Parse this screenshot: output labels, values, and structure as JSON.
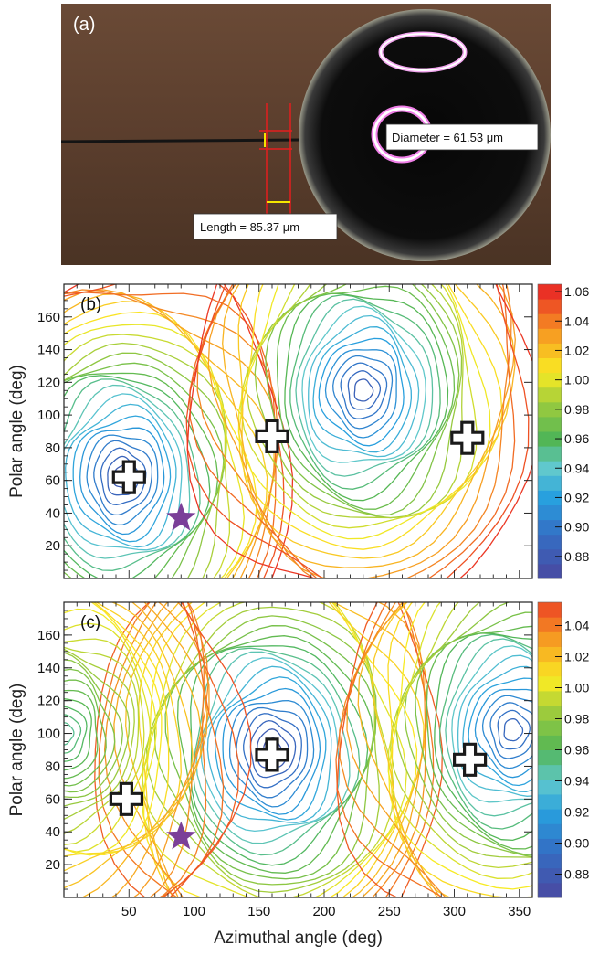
{
  "photo": {
    "panel_label": "(a)",
    "diameter_label": "Diameter = 61.53 μm",
    "length_label": "Length = 85.37 μm"
  },
  "chart_data": [
    {
      "type": "heatmap",
      "panel_label": "(b)",
      "title": "",
      "xlabel": "",
      "ylabel": "Polar angle (deg)",
      "xlim": [
        0,
        360
      ],
      "ylim": [
        0,
        180
      ],
      "xticks": [],
      "yticks": [
        20,
        40,
        60,
        80,
        100,
        120,
        140,
        160
      ],
      "colorbar": {
        "min": 0.865,
        "max": 1.065,
        "ticks": [
          0.88,
          0.9,
          0.92,
          0.94,
          0.96,
          0.98,
          1.0,
          1.02,
          1.04,
          1.06
        ],
        "tick_labels": [
          "0.88",
          "0.90",
          "0.92",
          "0.94",
          "0.96",
          "0.98",
          "1.00",
          "1.02",
          "1.04",
          "1.06"
        ]
      },
      "minima": [
        {
          "azimuth": 45,
          "polar": 62,
          "value": 0.88
        },
        {
          "azimuth": 230,
          "polar": 115,
          "value": 0.885
        }
      ],
      "cross_markers": [
        {
          "azimuth": 50,
          "polar": 62
        },
        {
          "azimuth": 160,
          "polar": 87
        },
        {
          "azimuth": 310,
          "polar": 86
        }
      ],
      "star_markers": [
        {
          "azimuth": 90,
          "polar": 37
        }
      ],
      "colors": {
        "low": "#3b3bb0",
        "mid": "#58b84a",
        "high": "#e81e26",
        "star": "#7b3f98"
      }
    },
    {
      "type": "heatmap",
      "panel_label": "(c)",
      "title": "",
      "xlabel": "Azimuthal angle (deg)",
      "ylabel": "Polar angle (deg)",
      "xlim": [
        0,
        360
      ],
      "ylim": [
        0,
        180
      ],
      "xticks": [
        50,
        100,
        150,
        200,
        250,
        300,
        350
      ],
      "yticks": [
        20,
        40,
        60,
        80,
        100,
        120,
        140,
        160
      ],
      "colorbar": {
        "min": 0.865,
        "max": 1.055,
        "ticks": [
          0.88,
          0.9,
          0.92,
          0.94,
          0.96,
          0.98,
          1.0,
          1.02,
          1.04
        ],
        "tick_labels": [
          "0.88",
          "0.90",
          "0.92",
          "0.94",
          "0.96",
          "0.98",
          "1.00",
          "1.02",
          "1.04"
        ]
      },
      "minima": [
        {
          "azimuth": 160,
          "polar": 90,
          "value": 0.875
        },
        {
          "azimuth": 345,
          "polar": 102,
          "value": 0.89
        },
        {
          "azimuth": 0,
          "polar": 100,
          "value": 0.95
        }
      ],
      "cross_markers": [
        {
          "azimuth": 48,
          "polar": 60
        },
        {
          "azimuth": 160,
          "polar": 87
        },
        {
          "azimuth": 312,
          "polar": 84
        }
      ],
      "star_markers": [
        {
          "azimuth": 90,
          "polar": 37
        }
      ],
      "colors": {
        "low": "#3b3bb0",
        "mid": "#58b84a",
        "high": "#e81e26",
        "star": "#7b3f98"
      }
    }
  ]
}
